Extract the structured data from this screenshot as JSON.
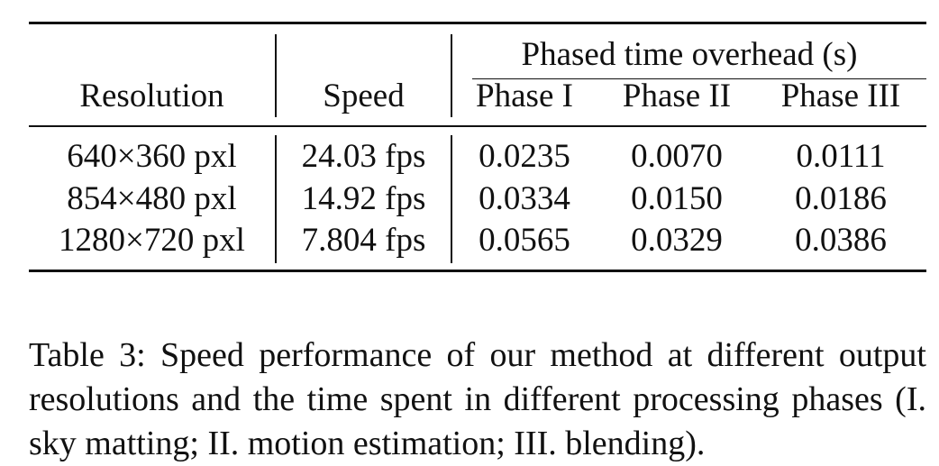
{
  "table": {
    "group_header": "Phased time overhead (s)",
    "columns": [
      "Resolution",
      "Speed",
      "Phase I",
      "Phase II",
      "Phase III"
    ],
    "rows": [
      [
        "640×360 pxl",
        "24.03 fps",
        "0.0235",
        "0.0070",
        "0.0111"
      ],
      [
        "854×480 pxl",
        "14.92 fps",
        "0.0334",
        "0.0150",
        "0.0186"
      ],
      [
        "1280×720 pxl",
        "7.804 fps",
        "0.0565",
        "0.0329",
        "0.0386"
      ]
    ]
  },
  "caption": "Table 3: Speed performance of our method at different output resolutions and the time spent in different processing phases (I. sky matting; II. motion estimation; III. blending)."
}
